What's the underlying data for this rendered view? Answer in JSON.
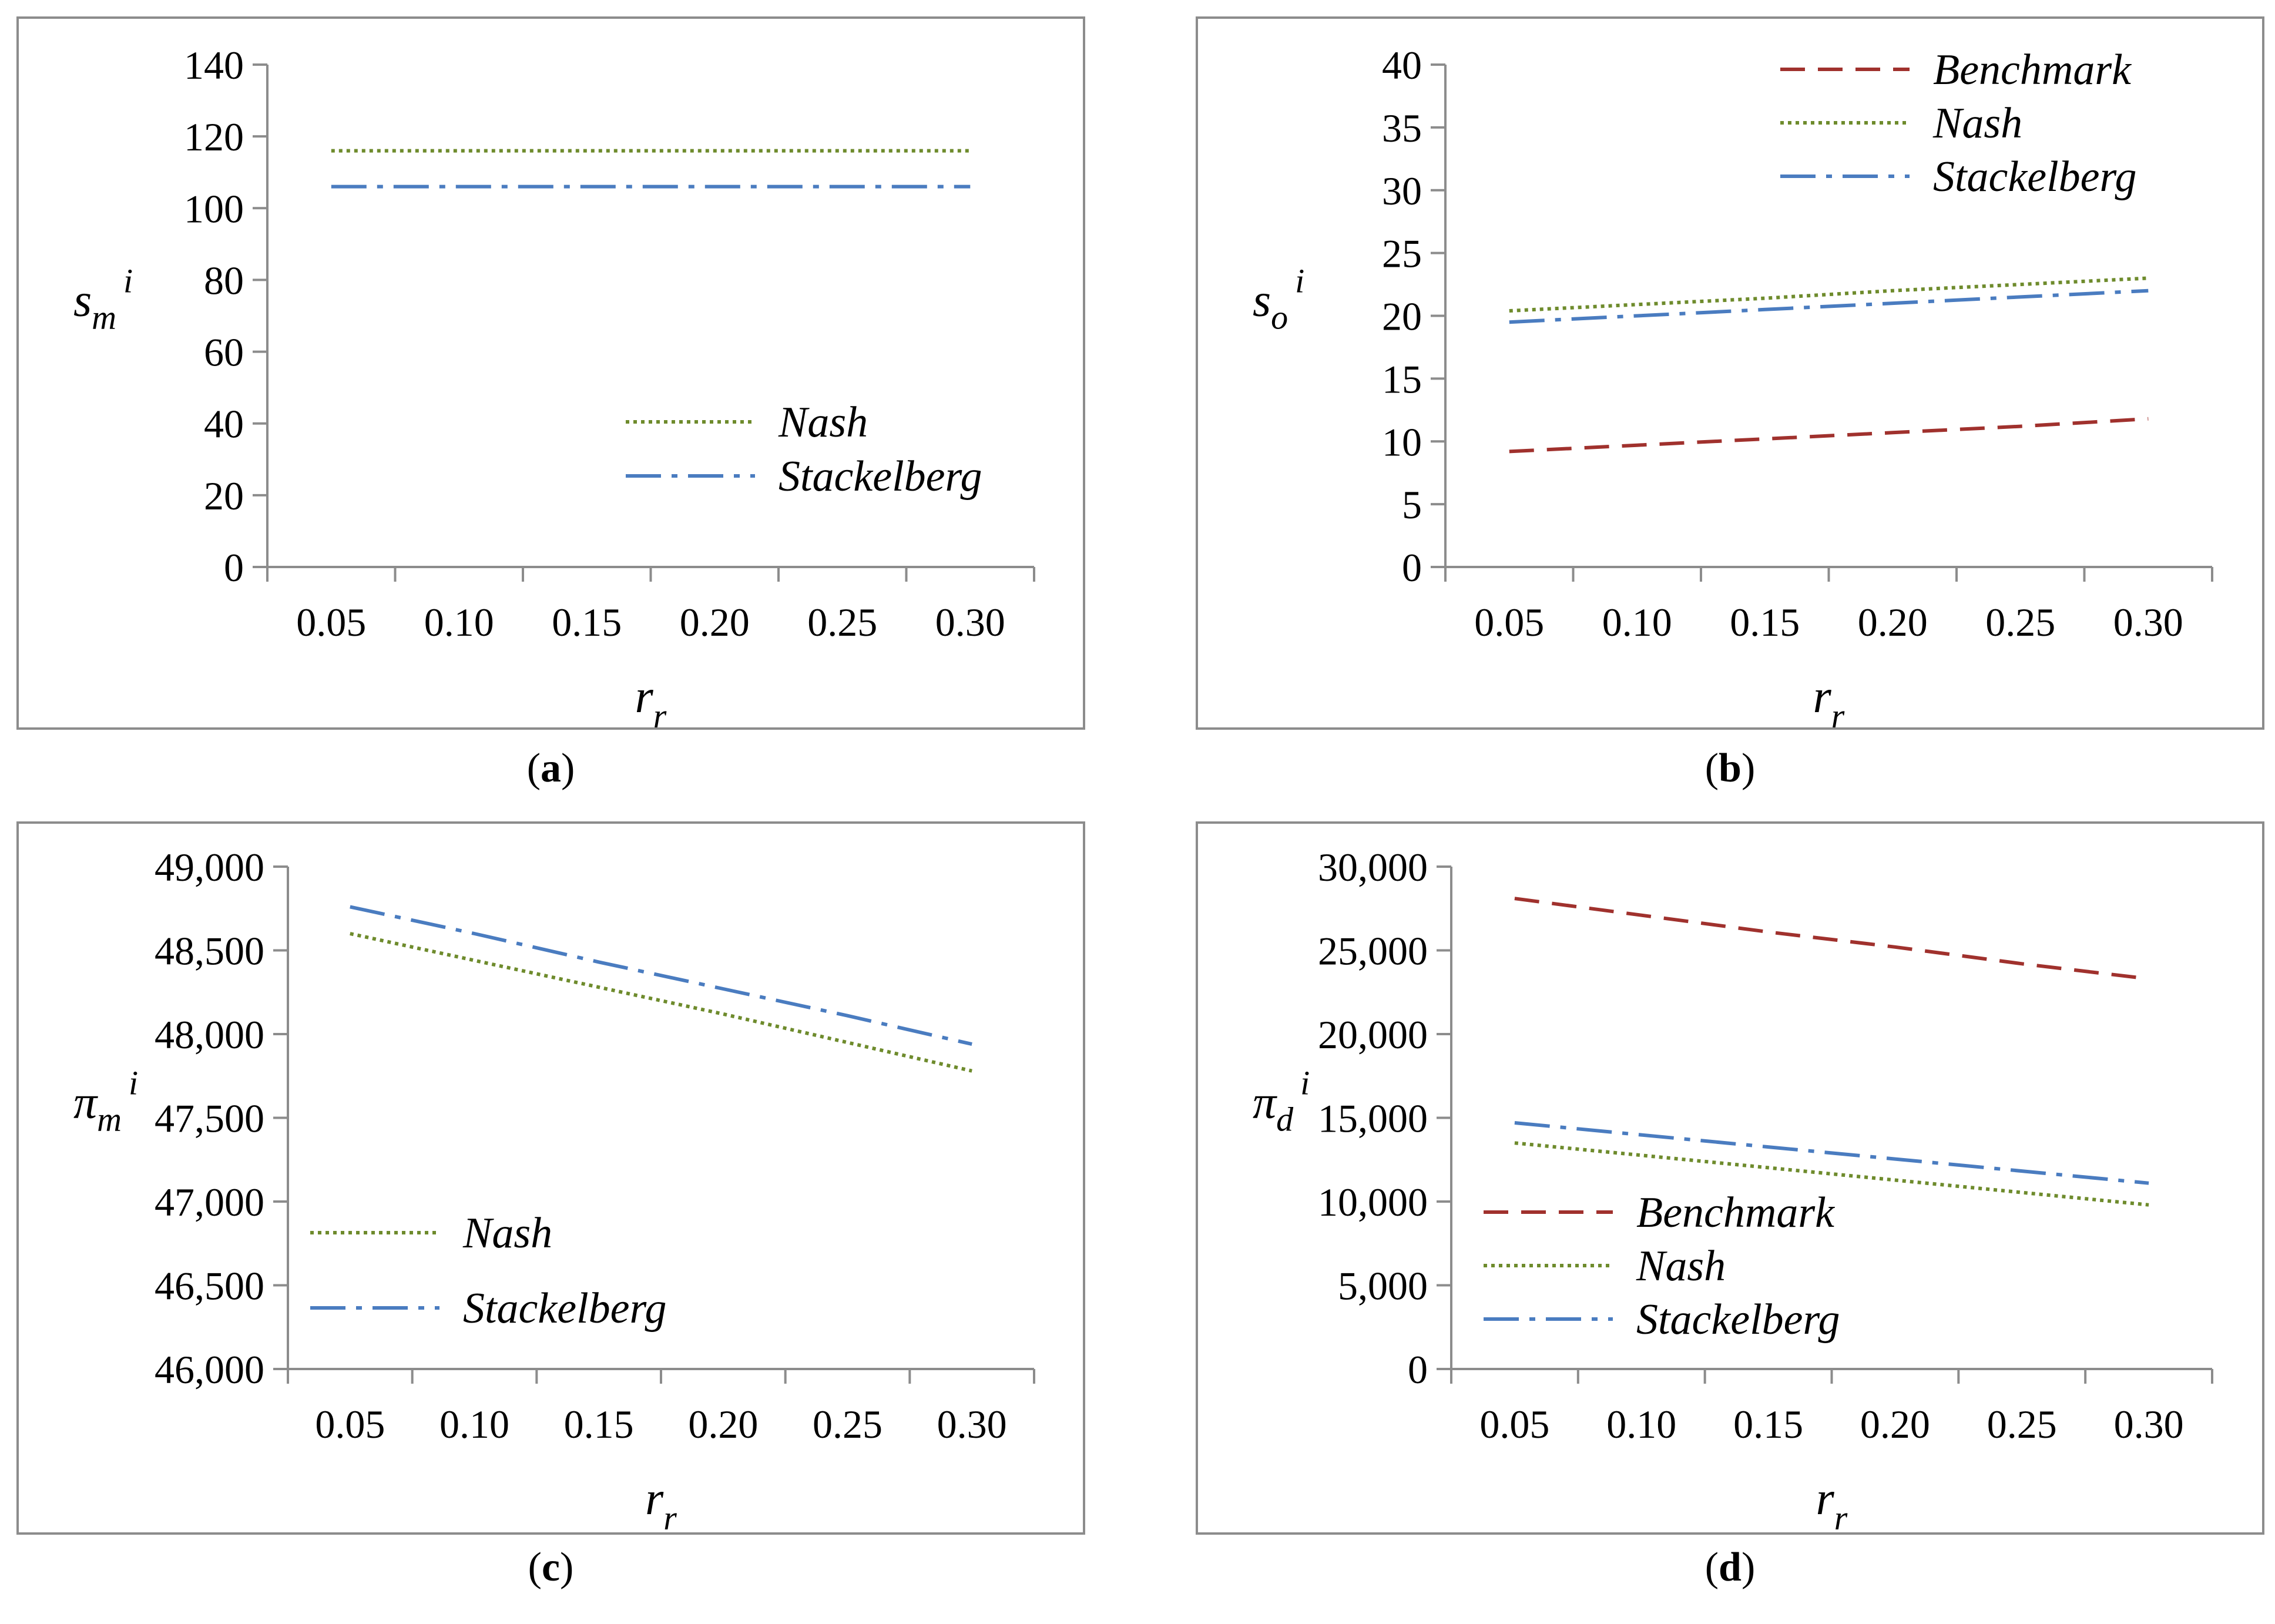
{
  "colors": {
    "benchmark": "#A0312D",
    "nash": "#6E8B2C",
    "stackelberg": "#4A7CC0",
    "axis": "#8C8C8C",
    "frame": "#8C8C8C"
  },
  "chart_data": [
    {
      "type": "line",
      "panel_label": "a",
      "ylabel_main": "s",
      "ylabel_sub": "m",
      "ylabel_sup": "i",
      "xlabel_main": "r",
      "xlabel_sub": "r",
      "categories": [
        "0.05",
        "0.10",
        "0.15",
        "0.20",
        "0.25",
        "0.30"
      ],
      "x": [
        0.05,
        0.1,
        0.15,
        0.2,
        0.25,
        0.3
      ],
      "ylim": [
        0,
        140
      ],
      "yticks": [
        0,
        20,
        40,
        60,
        80,
        100,
        120,
        140
      ],
      "ytick_labels": [
        "0",
        "20",
        "40",
        "60",
        "80",
        "100",
        "120",
        "140"
      ],
      "legend_position": "lower-right",
      "series": [
        {
          "name": "Nash",
          "style": "dotted",
          "color_key": "nash",
          "values": [
            116,
            116,
            116,
            116,
            116,
            116
          ]
        },
        {
          "name": "Stackelberg",
          "style": "dashdot",
          "color_key": "stackelberg",
          "values": [
            106,
            106,
            106,
            106,
            106,
            106
          ]
        }
      ]
    },
    {
      "type": "line",
      "panel_label": "b",
      "ylabel_main": "s",
      "ylabel_sub": "o",
      "ylabel_sup": "i",
      "xlabel_main": "r",
      "xlabel_sub": "r",
      "categories": [
        "0.05",
        "0.10",
        "0.15",
        "0.20",
        "0.25",
        "0.30"
      ],
      "x": [
        0.05,
        0.1,
        0.15,
        0.2,
        0.25,
        0.3
      ],
      "ylim": [
        0,
        40
      ],
      "yticks": [
        0,
        5,
        10,
        15,
        20,
        25,
        30,
        35,
        40
      ],
      "ytick_labels": [
        "0",
        "5",
        "10",
        "15",
        "20",
        "25",
        "30",
        "35",
        "40"
      ],
      "legend_position": "top-right",
      "series": [
        {
          "name": "Benchmark",
          "style": "dashed",
          "color_key": "benchmark",
          "values": [
            9.2,
            9.7,
            10.2,
            10.7,
            11.2,
            11.8
          ]
        },
        {
          "name": "Nash",
          "style": "dotted",
          "color_key": "nash",
          "values": [
            20.4,
            20.9,
            21.4,
            22.0,
            22.5,
            23.0
          ]
        },
        {
          "name": "Stackelberg",
          "style": "dashdot",
          "color_key": "stackelberg",
          "values": [
            19.5,
            20.0,
            20.5,
            21.0,
            21.5,
            22.0
          ]
        }
      ]
    },
    {
      "type": "line",
      "panel_label": "c",
      "ylabel_main": "π",
      "ylabel_sub": "m",
      "ylabel_sup": "i",
      "xlabel_main": "r",
      "xlabel_sub": "r",
      "categories": [
        "0.05",
        "0.10",
        "0.15",
        "0.20",
        "0.25",
        "0.30"
      ],
      "x": [
        0.05,
        0.1,
        0.15,
        0.2,
        0.25,
        0.3
      ],
      "ylim": [
        46000,
        49000
      ],
      "yticks": [
        46000,
        46500,
        47000,
        47500,
        48000,
        48500,
        49000
      ],
      "ytick_labels": [
        "46,000",
        "46,500",
        "47,000",
        "47,500",
        "48,000",
        "48,500",
        "49,000"
      ],
      "legend_position": "lower-left",
      "series": [
        {
          "name": "Nash",
          "style": "dotted",
          "color_key": "nash",
          "values": [
            48600,
            48440,
            48280,
            48120,
            47950,
            47780
          ]
        },
        {
          "name": "Stackelberg",
          "style": "dashdot",
          "color_key": "stackelberg",
          "values": [
            48760,
            48600,
            48430,
            48270,
            48110,
            47940
          ]
        }
      ]
    },
    {
      "type": "line",
      "panel_label": "d",
      "ylabel_main": "π",
      "ylabel_sub": "d",
      "ylabel_sup": "i",
      "xlabel_main": "r",
      "xlabel_sub": "r",
      "categories": [
        "0.05",
        "0.10",
        "0.15",
        "0.20",
        "0.25",
        "0.30"
      ],
      "x": [
        0.05,
        0.1,
        0.15,
        0.2,
        0.25,
        0.3
      ],
      "ylim": [
        0,
        30000
      ],
      "yticks": [
        0,
        5000,
        10000,
        15000,
        20000,
        25000,
        30000
      ],
      "ytick_labels": [
        "0",
        "5,000",
        "10,000",
        "15,000",
        "20,000",
        "25,000",
        "30,000"
      ],
      "legend_position": "lower-left",
      "series": [
        {
          "name": "Benchmark",
          "style": "dashed",
          "color_key": "benchmark",
          "values": [
            28100,
            27100,
            26100,
            25200,
            24200,
            23300
          ]
        },
        {
          "name": "Nash",
          "style": "dotted",
          "color_key": "nash",
          "values": [
            13500,
            12760,
            12020,
            11280,
            10540,
            9800
          ]
        },
        {
          "name": "Stackelberg",
          "style": "dashdot",
          "color_key": "stackelberg",
          "values": [
            14700,
            13980,
            13260,
            12540,
            11820,
            11100
          ]
        }
      ]
    }
  ]
}
